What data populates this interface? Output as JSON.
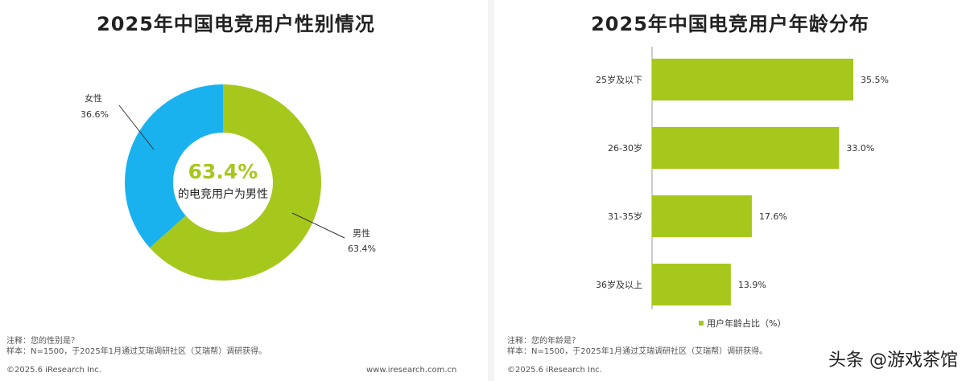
{
  "chart_data": [
    {
      "type": "pie",
      "title": "2025年中国电竞用户性别情况",
      "center_value": "63.4%",
      "center_label": "的电竞用户为男性",
      "slices": [
        {
          "label": "男性",
          "value": 63.4,
          "value_text": "63.4%",
          "color": "#a6c81c"
        },
        {
          "label": "女性",
          "value": 36.6,
          "value_text": "36.6%",
          "color": "#1ab2ee"
        }
      ]
    },
    {
      "type": "bar",
      "orientation": "horizontal",
      "title": "2025年中国电竞用户年龄分布",
      "categories": [
        "25岁及以下",
        "26-30岁",
        "31-35岁",
        "36岁及以上"
      ],
      "series": [
        {
          "name": "用户年龄占比（%）",
          "values": [
            35.5,
            33.0,
            17.6,
            13.9
          ],
          "color": "#a6c81c"
        }
      ],
      "value_labels": [
        "35.5%",
        "33.0%",
        "17.6%",
        "13.9%"
      ],
      "xlim": [
        0,
        40
      ],
      "legend": "bottom"
    }
  ],
  "left_notes": {
    "line1": "注释：您的性别是？",
    "line2": "样本：N=1500，于2025年1月通过艾瑞调研社区（艾瑞帮）调研获得。",
    "copyright": "©2025.6 iResearch Inc.",
    "url": "www.iresearch.com.cn"
  },
  "right_notes": {
    "line1": "注释：您的年龄是？",
    "line2": "样本：N=1500，于2025年1月通过艾瑞调研社区（艾瑞帮）调研获得。",
    "copyright": "©2025.6 iResearch Inc."
  },
  "watermark": "头条 @游戏茶馆"
}
